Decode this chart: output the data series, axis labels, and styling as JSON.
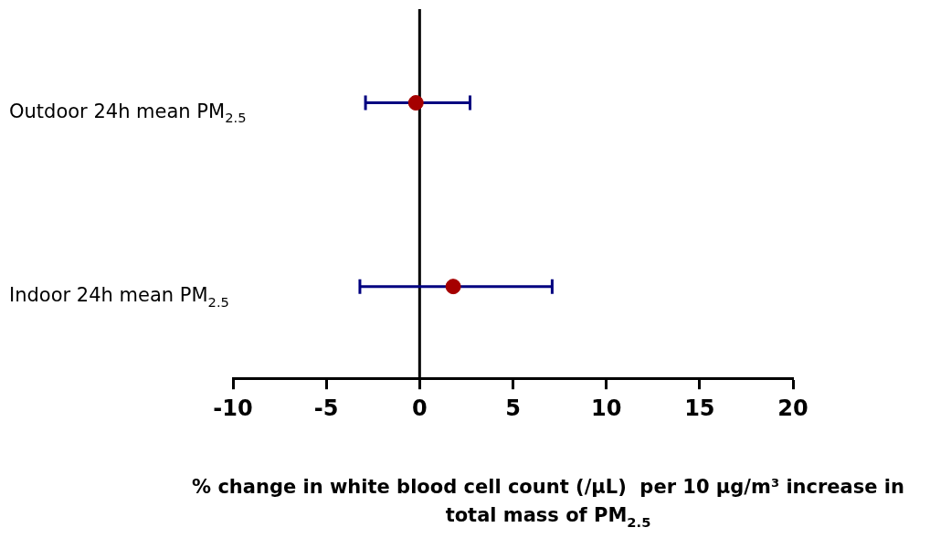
{
  "chart_data": {
    "type": "scatter",
    "orientation": "horizontal",
    "categories": [
      "Outdoor 24h mean PM$_{2.5}$",
      "Indoor 24h mean PM$_{2.5}$"
    ],
    "values": [
      -0.2,
      1.8
    ],
    "errors": [
      [
        -2.9,
        2.7
      ],
      [
        -3.2,
        7.1
      ]
    ],
    "color": "#a50000",
    "marker": "circle",
    "xlim": [
      -10,
      20
    ],
    "xticks": [
      -10,
      -5,
      0,
      5,
      10,
      15,
      20
    ],
    "xlabel": "% change in white blood cell count (/µL)  per 10 µg/m³ increase in total mass of PM$_{2.5}$",
    "ref_lines": [
      {
        "axis": "x",
        "value": 0,
        "color": "#000000"
      }
    ],
    "grid": false,
    "legend": false
  }
}
